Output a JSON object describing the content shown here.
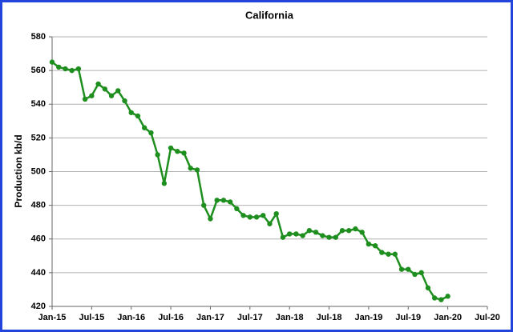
{
  "chart_data": {
    "type": "line",
    "title": "California",
    "y_label": "Production kb/d",
    "x": [
      "2015-01",
      "2015-02",
      "2015-03",
      "2015-04",
      "2015-05",
      "2015-06",
      "2015-07",
      "2015-08",
      "2015-09",
      "2015-10",
      "2015-11",
      "2015-12",
      "2016-01",
      "2016-02",
      "2016-03",
      "2016-04",
      "2016-05",
      "2016-06",
      "2016-07",
      "2016-08",
      "2016-09",
      "2016-10",
      "2016-11",
      "2016-12",
      "2017-01",
      "2017-02",
      "2017-03",
      "2017-04",
      "2017-05",
      "2017-06",
      "2017-07",
      "2017-08",
      "2017-09",
      "2017-10",
      "2017-11",
      "2017-12",
      "2018-01",
      "2018-02",
      "2018-03",
      "2018-04",
      "2018-05",
      "2018-06",
      "2018-07",
      "2018-08",
      "2018-09",
      "2018-10",
      "2018-11",
      "2018-12",
      "2019-01",
      "2019-02",
      "2019-03",
      "2019-04",
      "2019-05",
      "2019-06",
      "2019-07",
      "2019-08",
      "2019-09",
      "2019-10",
      "2019-11",
      "2019-12",
      "2020-01"
    ],
    "series": [
      {
        "name": "California",
        "color": "#1e8f1e",
        "values": [
          565,
          562,
          561,
          560,
          561,
          543,
          545,
          552,
          549,
          545,
          548,
          542,
          535,
          533,
          526,
          523,
          510,
          493,
          514,
          512,
          511,
          502,
          501,
          480,
          472,
          483,
          483,
          482,
          478,
          474,
          473,
          473,
          474,
          469,
          475,
          461,
          463,
          463,
          462,
          465,
          464,
          462,
          461,
          461,
          465,
          465,
          466,
          464,
          457,
          456,
          452,
          451,
          451,
          442,
          442,
          439,
          440,
          431,
          425,
          424,
          426
        ]
      }
    ],
    "xlim": [
      "2015-01",
      "2020-07"
    ],
    "xticks": [
      {
        "value": "2015-01",
        "label": "Jan-15"
      },
      {
        "value": "2015-07",
        "label": "Jul-15"
      },
      {
        "value": "2016-01",
        "label": "Jan-16"
      },
      {
        "value": "2016-07",
        "label": "Jul-16"
      },
      {
        "value": "2017-01",
        "label": "Jan-17"
      },
      {
        "value": "2017-07",
        "label": "Jul-17"
      },
      {
        "value": "2018-01",
        "label": "Jan-18"
      },
      {
        "value": "2018-07",
        "label": "Jul-18"
      },
      {
        "value": "2019-01",
        "label": "Jan-19"
      },
      {
        "value": "2019-07",
        "label": "Jul-19"
      },
      {
        "value": "2020-01",
        "label": "Jan-20"
      },
      {
        "value": "2020-07",
        "label": "Jul-20"
      }
    ],
    "ylim": [
      420,
      580
    ],
    "yticks": [
      420,
      440,
      460,
      480,
      500,
      520,
      540,
      560,
      580
    ],
    "grid": true
  }
}
